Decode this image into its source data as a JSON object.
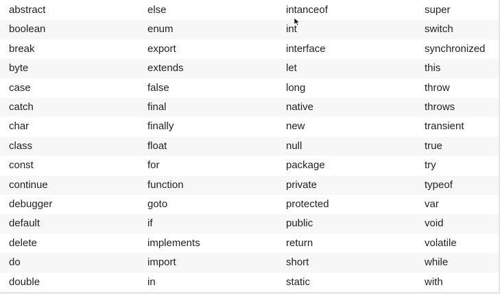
{
  "keywords": {
    "rows": [
      [
        "abstract",
        "else",
        "intanceof",
        "super"
      ],
      [
        "boolean",
        "enum",
        "int",
        "switch"
      ],
      [
        "break",
        "export",
        "interface",
        "synchronized"
      ],
      [
        "byte",
        "extends",
        "let",
        "this"
      ],
      [
        "case",
        "false",
        "long",
        "throw"
      ],
      [
        "catch",
        "final",
        "native",
        "throws"
      ],
      [
        "char",
        "finally",
        "new",
        "transient"
      ],
      [
        "class",
        "float",
        "null",
        "true"
      ],
      [
        "const",
        "for",
        "package",
        "try"
      ],
      [
        "continue",
        "function",
        "private",
        "typeof"
      ],
      [
        "debugger",
        "goto",
        "protected",
        "var"
      ],
      [
        "default",
        "if",
        "public",
        "void"
      ],
      [
        "delete",
        "implements",
        "return",
        "volatile"
      ],
      [
        "do",
        "import",
        "short",
        "while"
      ],
      [
        "double",
        "in",
        "static",
        "with"
      ]
    ]
  },
  "colors": {
    "text": "#222222",
    "stripe": "#f7f7f7",
    "background": "#ffffff"
  },
  "cursor": {
    "icon": "mouse-pointer-icon"
  }
}
